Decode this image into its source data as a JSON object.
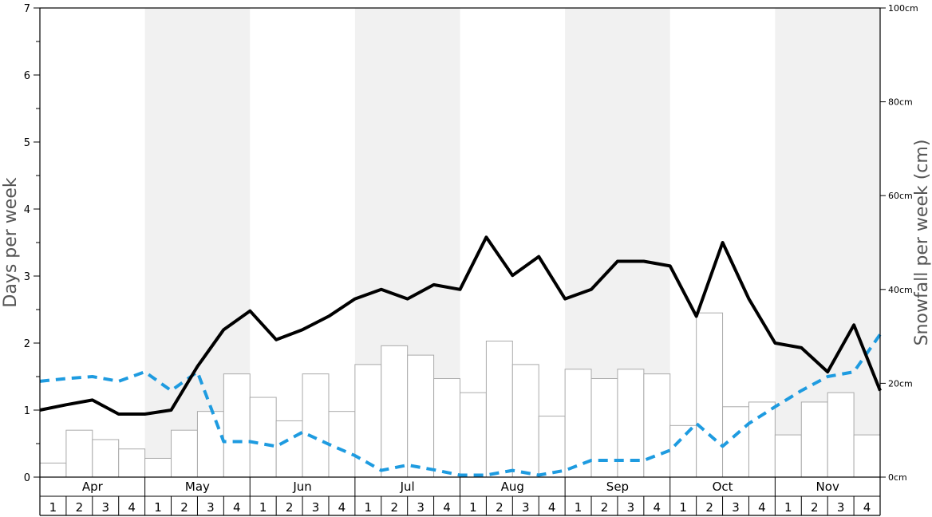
{
  "chart_data": {
    "type": "bar+line",
    "months": [
      "Apr",
      "May",
      "Jun",
      "Jul",
      "Aug",
      "Sep",
      "Oct",
      "Nov"
    ],
    "week_labels": [
      "1",
      "2",
      "3",
      "4"
    ],
    "left_axis": {
      "title": "Days per week",
      "range": [
        0,
        7
      ],
      "ticks": [
        "0",
        "1",
        "2",
        "3",
        "4",
        "5",
        "6",
        "7"
      ]
    },
    "right_axis": {
      "title": "Snowfall per week (cm)",
      "range": [
        0,
        100
      ],
      "ticks": [
        "0cm",
        "20cm",
        "40cm",
        "60cm",
        "80cm",
        "100cm"
      ]
    },
    "bars": {
      "axis": "right",
      "color": "#ffffff",
      "stroke": "#aaaaaa",
      "values": [
        3,
        10,
        8,
        6,
        4,
        10,
        14,
        22,
        17,
        12,
        22,
        14,
        24,
        28,
        26,
        21,
        18,
        29,
        24,
        13,
        23,
        21,
        23,
        22,
        11,
        35,
        15,
        16,
        9,
        16,
        18,
        9
      ]
    },
    "solid_line": {
      "axis": "left",
      "color": "#000000",
      "values": [
        1.0,
        1.08,
        1.15,
        0.94,
        0.94,
        1.0,
        1.65,
        2.2,
        2.48,
        2.05,
        2.2,
        2.4,
        2.66,
        2.8,
        2.66,
        2.87,
        2.8,
        3.58,
        3.01,
        3.29,
        2.66,
        2.8,
        3.22,
        3.22,
        3.15,
        2.4,
        3.5,
        2.66,
        2.0,
        1.93,
        1.57,
        2.27,
        1.29
      ]
    },
    "dashed_line": {
      "axis": "left",
      "color": "#1e9be0",
      "values": [
        1.43,
        1.47,
        1.5,
        1.43,
        1.57,
        1.29,
        1.57,
        0.53,
        0.53,
        0.46,
        0.67,
        0.49,
        0.32,
        0.1,
        0.18,
        0.11,
        0.03,
        0.03,
        0.1,
        0.03,
        0.1,
        0.25,
        0.25,
        0.25,
        0.4,
        0.8,
        0.46,
        0.8,
        1.05,
        1.29,
        1.5,
        1.57,
        2.13
      ]
    },
    "shading": "alternating months shaded #f1f1f1"
  }
}
